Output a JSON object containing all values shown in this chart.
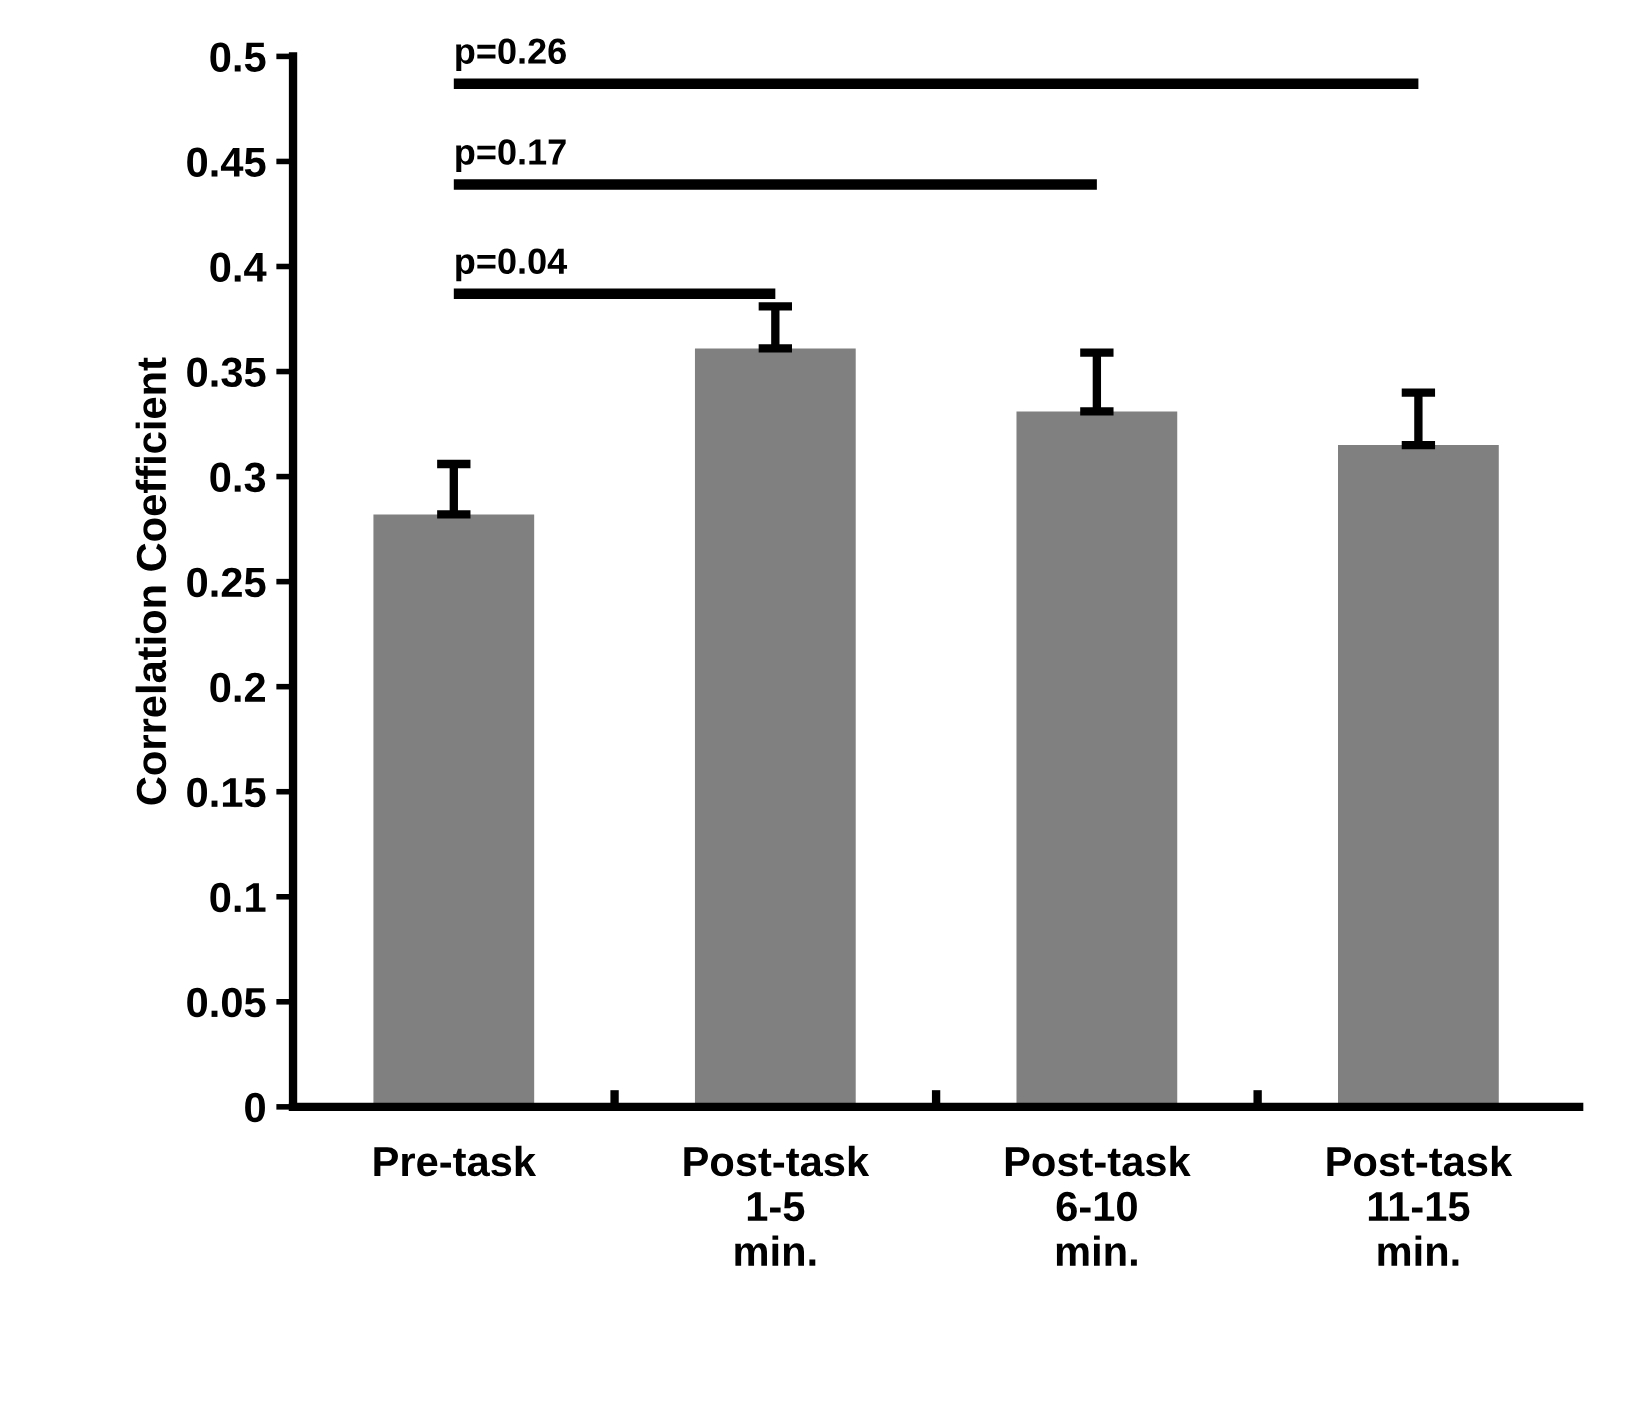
{
  "chart_data": {
    "type": "bar",
    "ylabel": "Correlation Coefficient",
    "categories": [
      "Pre-task",
      "Post-task\n1-5\nmin.",
      "Post-task\n6-10\nmin.",
      "Post-task\n11-15\nmin."
    ],
    "values": [
      0.282,
      0.361,
      0.331,
      0.315
    ],
    "errors": [
      [
        0.282,
        0.306
      ],
      [
        0.361,
        0.381
      ],
      [
        0.331,
        0.359
      ],
      [
        0.315,
        0.34
      ]
    ],
    "color": "#808080",
    "ylim": [
      0,
      0.5
    ],
    "yticks": [
      0,
      0.05,
      0.1,
      0.15,
      0.2,
      0.25,
      0.3,
      0.35,
      0.4,
      0.45,
      0.5
    ],
    "annotations": [
      "p=0.04",
      "p=0.17",
      "p=0.26"
    ],
    "grid": false,
    "legend": false
  }
}
